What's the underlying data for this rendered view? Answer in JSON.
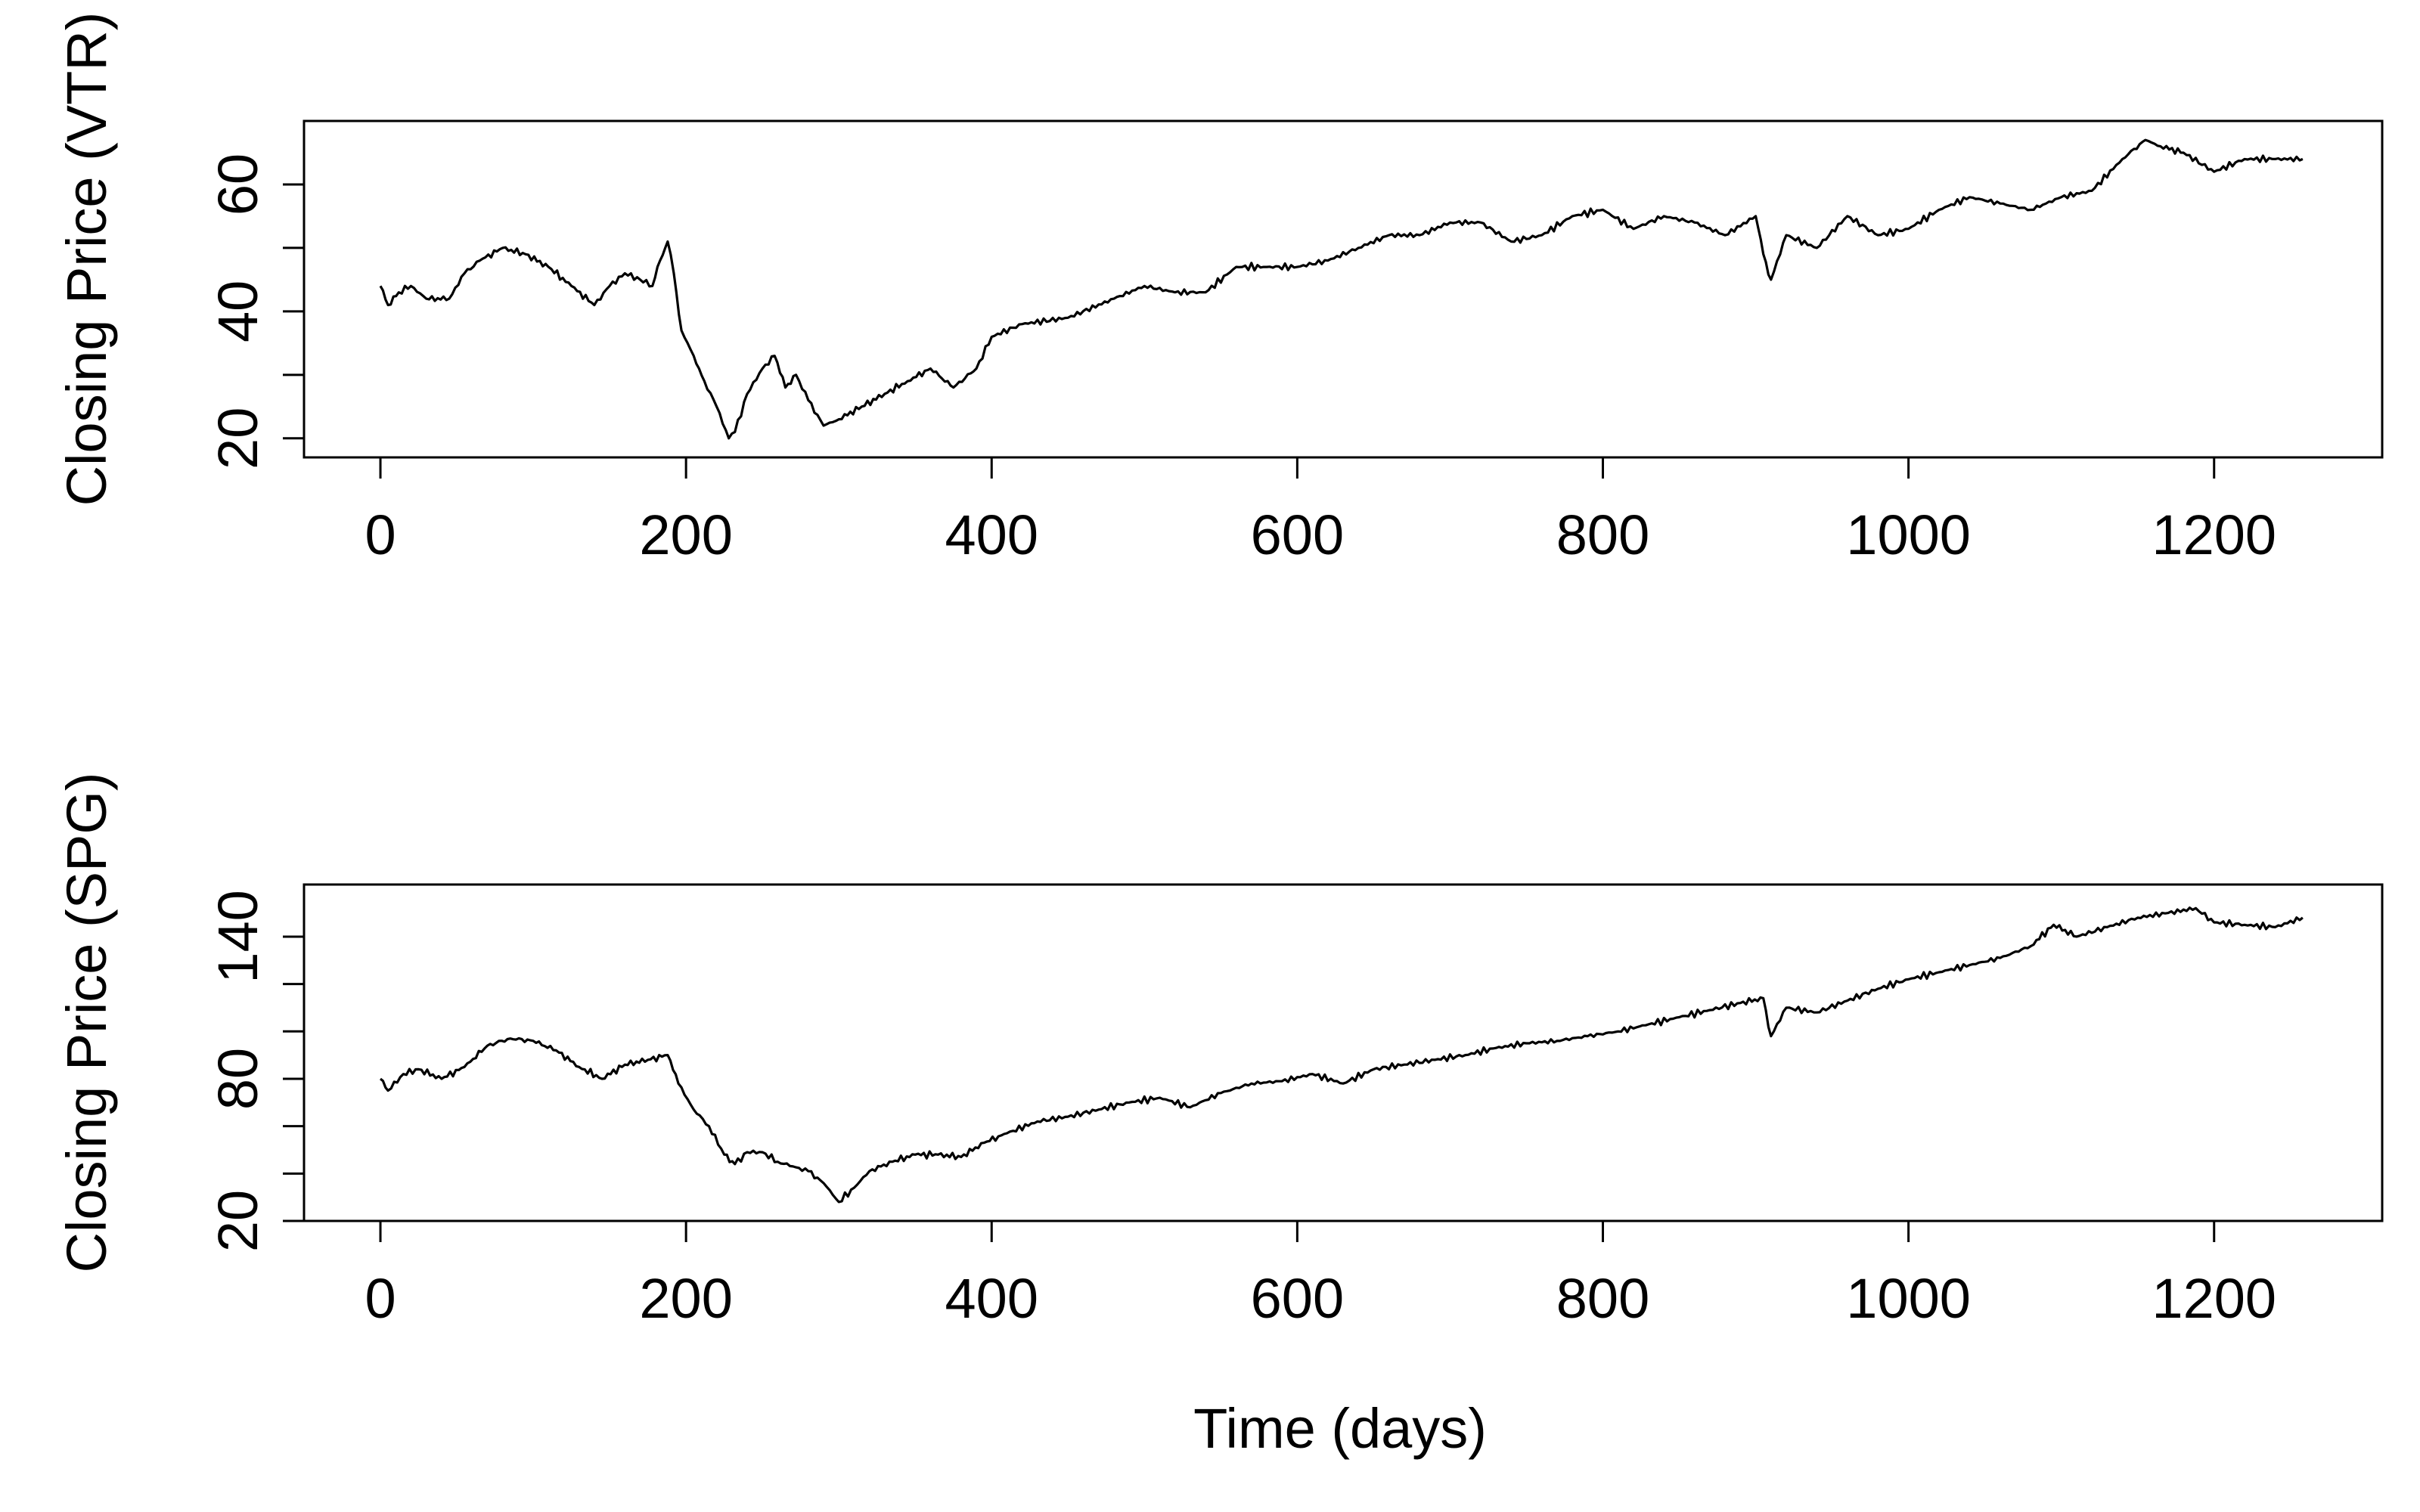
{
  "chart_data": [
    {
      "type": "line",
      "title": "",
      "xlabel": "",
      "ylabel": "Closing Price (VTR)",
      "xlim": [
        -50,
        1310
      ],
      "ylim": [
        17,
        70
      ],
      "x_ticks": [
        0,
        200,
        400,
        600,
        800,
        1000,
        1200
      ],
      "y_ticks": [
        20,
        30,
        40,
        50,
        60
      ],
      "y_tick_labels": [
        "20",
        "",
        "40",
        "",
        "60"
      ],
      "grid": false,
      "series": [
        {
          "x": [
            0,
            5,
            12,
            20,
            30,
            45,
            55,
            65,
            80,
            95,
            110,
            125,
            140,
            150,
            160,
            170,
            178,
            183,
            188,
            192,
            197,
            205,
            212,
            220,
            228,
            232,
            240,
            250,
            258,
            265,
            272,
            280,
            290,
            300,
            315,
            330,
            345,
            360,
            375,
            390,
            400,
            420,
            450,
            480,
            500,
            520,
            540,
            560,
            580,
            600,
            620,
            640,
            660,
            680,
            700,
            720,
            740,
            760,
            780,
            800,
            820,
            840,
            860,
            880,
            900,
            905,
            910,
            920,
            940,
            960,
            980,
            1000,
            1020,
            1040,
            1060,
            1080,
            1100,
            1120,
            1140,
            1155,
            1165,
            1180,
            1200,
            1220,
            1240,
            1258
          ],
          "y": [
            44,
            41,
            43,
            44,
            42,
            42,
            46,
            48,
            50,
            49,
            47,
            44,
            41,
            44,
            46,
            45,
            44,
            48,
            51,
            46,
            37,
            33,
            29,
            25,
            20,
            21,
            27,
            31,
            33,
            28,
            30,
            26,
            22,
            23,
            25,
            27,
            29,
            31,
            28,
            31,
            36,
            38,
            39,
            42,
            44,
            43,
            43,
            47,
            47,
            47,
            48,
            50,
            52,
            52,
            54,
            54,
            51,
            52,
            55,
            56,
            53,
            55,
            54,
            52,
            55,
            49,
            45,
            52,
            50,
            55,
            52,
            53,
            56,
            58,
            57,
            56,
            58,
            59,
            64,
            67,
            66,
            65,
            62,
            64,
            64,
            64
          ]
        }
      ]
    },
    {
      "type": "line",
      "title": "",
      "xlabel": "Time (days)",
      "ylabel": "Closing Price (SPG)",
      "xlim": [
        -50,
        1310
      ],
      "ylim": [
        20,
        162
      ],
      "x_ticks": [
        0,
        200,
        400,
        600,
        800,
        1000,
        1200
      ],
      "y_ticks": [
        20,
        40,
        60,
        80,
        100,
        120,
        140
      ],
      "y_tick_labels": [
        "20",
        "",
        "",
        "80",
        "",
        "",
        "140"
      ],
      "grid": false,
      "series": [
        {
          "x": [
            0,
            5,
            15,
            25,
            40,
            55,
            70,
            85,
            100,
            115,
            130,
            145,
            160,
            175,
            188,
            195,
            205,
            215,
            225,
            232,
            240,
            250,
            260,
            270,
            280,
            290,
            300,
            310,
            320,
            335,
            350,
            365,
            380,
            395,
            410,
            430,
            450,
            470,
            490,
            510,
            530,
            550,
            570,
            590,
            610,
            630,
            650,
            670,
            690,
            710,
            730,
            750,
            770,
            790,
            810,
            830,
            850,
            870,
            890,
            905,
            910,
            920,
            940,
            960,
            980,
            1000,
            1020,
            1040,
            1060,
            1080,
            1095,
            1110,
            1130,
            1150,
            1170,
            1188,
            1200,
            1220,
            1240,
            1258
          ],
          "y": [
            80,
            75,
            82,
            84,
            80,
            85,
            94,
            97,
            96,
            92,
            85,
            80,
            86,
            88,
            90,
            78,
            67,
            60,
            48,
            44,
            49,
            49,
            45,
            43,
            41,
            36,
            28,
            34,
            41,
            45,
            48,
            48,
            47,
            53,
            57,
            62,
            64,
            67,
            70,
            72,
            68,
            74,
            78,
            79,
            82,
            78,
            84,
            86,
            88,
            90,
            93,
            95,
            96,
            98,
            100,
            103,
            106,
            109,
            112,
            114,
            98,
            110,
            108,
            113,
            118,
            122,
            125,
            128,
            131,
            136,
            145,
            140,
            144,
            148,
            150,
            152,
            146,
            145,
            144,
            148
          ]
        }
      ]
    }
  ]
}
